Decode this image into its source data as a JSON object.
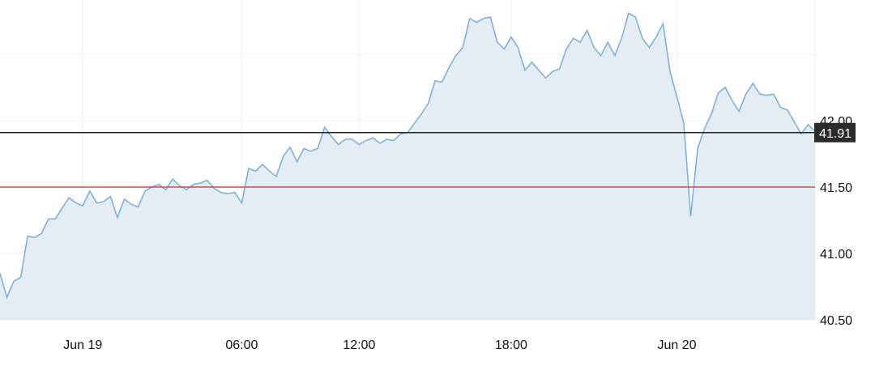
{
  "chart_data": {
    "type": "area",
    "title": "",
    "xlabel": "",
    "ylabel": "",
    "ylim": [
      40.5,
      42.91
    ],
    "grid": true,
    "y_ticks": [
      {
        "value": 42.0,
        "label": "42.00"
      },
      {
        "value": 41.5,
        "label": "41.50"
      },
      {
        "value": 41.0,
        "label": "41.00"
      },
      {
        "value": 40.5,
        "label": "40.50"
      }
    ],
    "y_grid_extra": [
      42.5
    ],
    "x_ticks": [
      {
        "index": 12,
        "label": "Jun 19"
      },
      {
        "index": 35,
        "label": "06:00"
      },
      {
        "index": 52,
        "label": "12:00"
      },
      {
        "index": 74,
        "label": "18:00"
      },
      {
        "index": 98,
        "label": "Jun 20"
      }
    ],
    "values": [
      40.85,
      40.67,
      40.79,
      40.82,
      41.13,
      41.12,
      41.15,
      41.26,
      41.26,
      41.34,
      41.42,
      41.38,
      41.36,
      41.47,
      41.38,
      41.39,
      41.43,
      41.27,
      41.41,
      41.37,
      41.35,
      41.47,
      41.5,
      41.52,
      41.48,
      41.56,
      41.51,
      41.48,
      41.52,
      41.53,
      41.55,
      41.49,
      41.46,
      41.45,
      41.46,
      41.38,
      41.64,
      41.62,
      41.67,
      41.62,
      41.58,
      41.73,
      41.8,
      41.69,
      41.79,
      41.77,
      41.79,
      41.95,
      41.88,
      41.82,
      41.86,
      41.86,
      41.82,
      41.85,
      41.87,
      41.83,
      41.86,
      41.85,
      41.9,
      41.91,
      41.98,
      42.05,
      42.13,
      42.3,
      42.29,
      42.4,
      42.49,
      42.55,
      42.77,
      42.74,
      42.77,
      42.78,
      42.59,
      42.54,
      42.63,
      42.55,
      42.38,
      42.44,
      42.38,
      42.32,
      42.37,
      42.39,
      42.54,
      42.62,
      42.59,
      42.68,
      42.55,
      42.49,
      42.59,
      42.49,
      42.62,
      42.81,
      42.78,
      42.62,
      42.55,
      42.63,
      42.73,
      42.37,
      42.18,
      41.98,
      41.28,
      41.79,
      41.94,
      42.05,
      42.21,
      42.25,
      42.15,
      42.07,
      42.2,
      42.28,
      42.2,
      42.19,
      42.2,
      42.1,
      42.08,
      41.99,
      41.9,
      41.97,
      41.92
    ],
    "current_price": {
      "value": 41.91,
      "label": "41.91"
    },
    "reference_line": {
      "value": 41.5
    },
    "colors": {
      "line": "#7fb1de",
      "fill": "#e4edf3",
      "current_line": "#222222",
      "reference_line": "#e8413c",
      "grid": "#f0f0f0",
      "current_label_bg": "#2b2b2b"
    }
  }
}
